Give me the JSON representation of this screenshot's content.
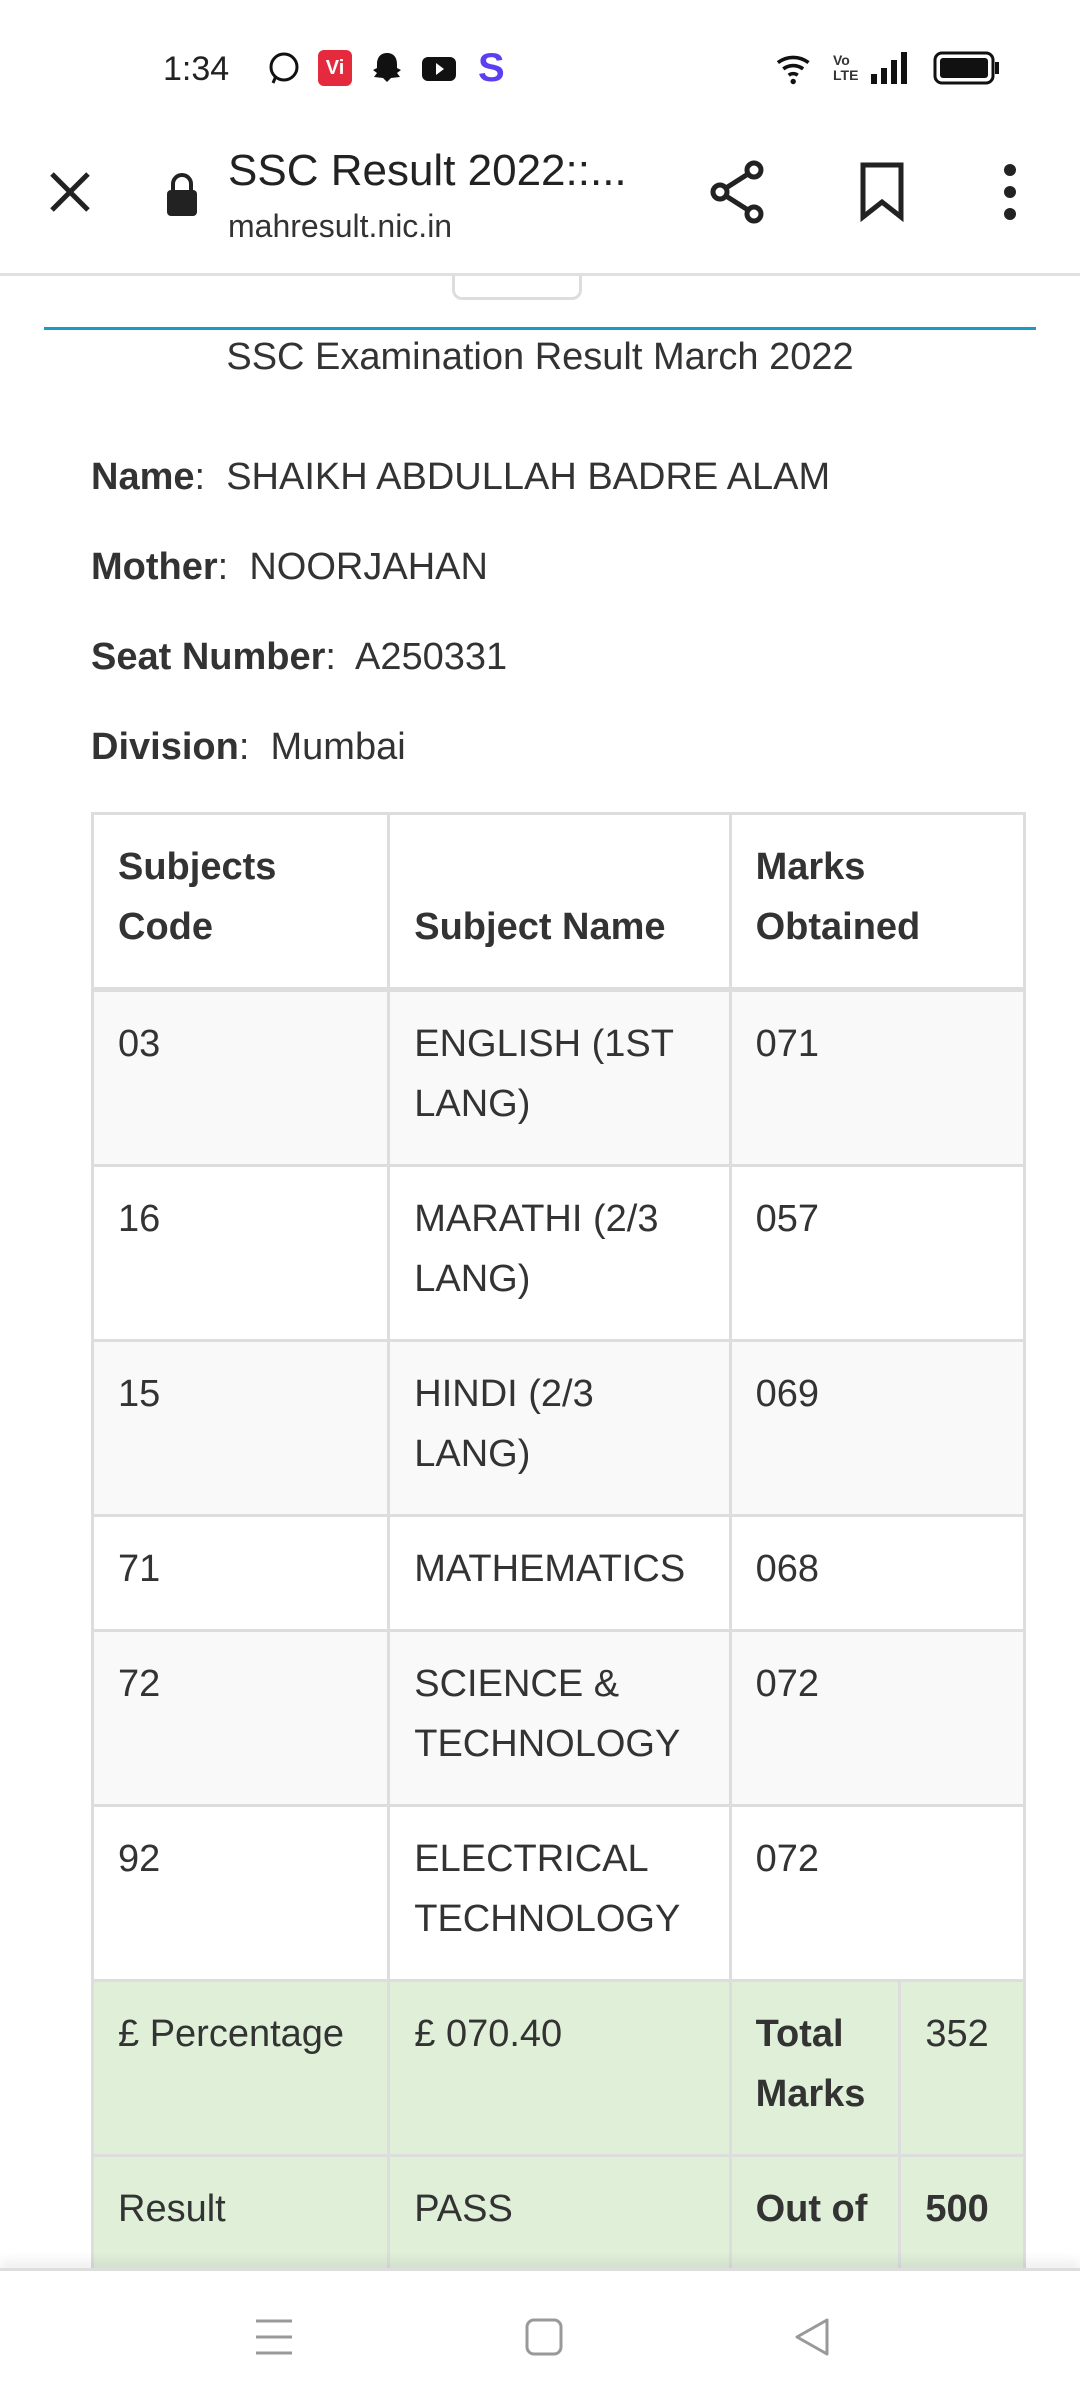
{
  "status_bar": {
    "time": "1:34",
    "icons": [
      "whatsapp-icon",
      "vi-icon",
      "snapchat-icon",
      "youtube-icon",
      "s-app-icon",
      "wifi-icon",
      "volte-icon",
      "signal-icon",
      "battery-icon"
    ]
  },
  "browser": {
    "title": "SSC Result 2022::...",
    "url": "mahresult.nic.in"
  },
  "page": {
    "heading": "SSC Examination Result March 2022",
    "fields": [
      {
        "label": "Name",
        "value": "SHAIKH ABDULLAH BADRE ALAM"
      },
      {
        "label": "Mother",
        "value": "NOORJAHAN"
      },
      {
        "label": "Seat Number",
        "value": "A250331"
      },
      {
        "label": "Division",
        "value": "Mumbai"
      }
    ],
    "table": {
      "headers": [
        "Subjects Code",
        "Subject Name",
        "Marks Obtained"
      ],
      "rows": [
        [
          "03",
          "ENGLISH (1ST LANG)",
          "071"
        ],
        [
          "16",
          "MARATHI (2/3 LANG)",
          "057"
        ],
        [
          "15",
          "HINDI (2/3 LANG)",
          "069"
        ],
        [
          "71",
          "MATHEMATICS",
          "068"
        ],
        [
          "72",
          "SCIENCE & TECHNOLOGY",
          "072"
        ],
        [
          "92",
          "ELECTRICAL TECHNOLOGY",
          "072"
        ]
      ],
      "summary": {
        "percentage_label": "£ Percentage",
        "percentage_value": "£ 070.40",
        "total_label": "Total Marks",
        "total_value": "352",
        "result_label": "Result",
        "result_value": "PASS",
        "outof_label": "Out of",
        "outof_value": "500"
      }
    }
  }
}
